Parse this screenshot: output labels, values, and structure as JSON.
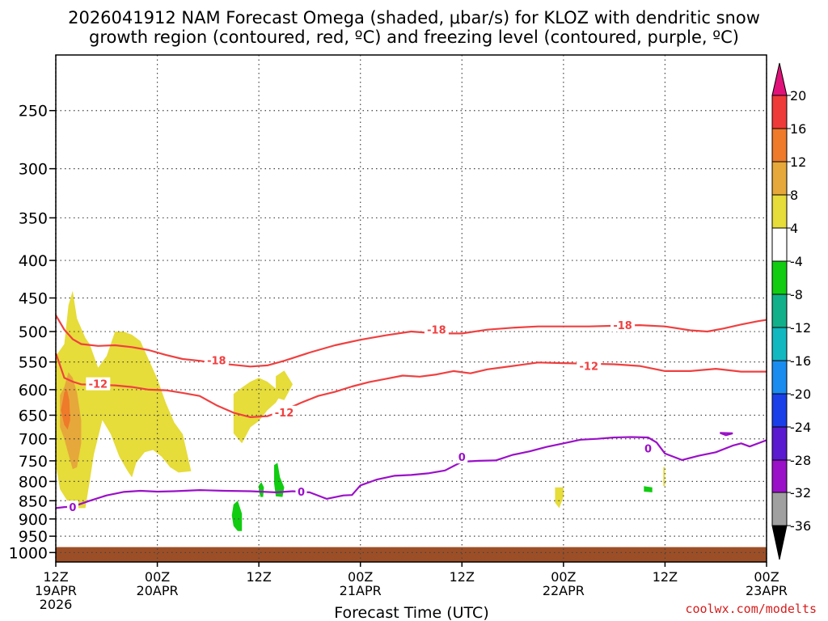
{
  "title_line1": "2026041912 NAM Forecast Omega (shaded, μbar/s) for KLOZ with dendritic snow",
  "title_line2": "growth region (contoured, red, ºC) and freezing level (contoured, purple, ºC)",
  "watermark": "coolwx.com/modelts",
  "chart_data": {
    "type": "contour",
    "title": "2026041912 NAM Forecast Omega (shaded, μbar/s) for KLOZ with dendritic snow growth region (contoured, red, ºC) and freezing level (contoured, purple, ºC)",
    "xlabel": "Forecast Time (UTC)",
    "ylabel": "",
    "xlim": [
      0,
      84
    ],
    "ylim": [
      1030,
      210
    ],
    "y_scale": "log-pressure (hPa)",
    "x_unit": "forecast hours from 2026-04-19 12Z",
    "grid": "dotted",
    "y_ticks": [
      250,
      300,
      350,
      400,
      450,
      500,
      550,
      600,
      650,
      700,
      750,
      800,
      850,
      900,
      950,
      1000
    ],
    "x_ticks": [
      {
        "hour": 0,
        "label": "12Z",
        "sub": "19APR",
        "sub2": "2026"
      },
      {
        "hour": 12,
        "label": "00Z",
        "sub": "20APR"
      },
      {
        "hour": 24,
        "label": "12Z",
        "sub": ""
      },
      {
        "hour": 36,
        "label": "00Z",
        "sub": "21APR"
      },
      {
        "hour": 48,
        "label": "12Z",
        "sub": ""
      },
      {
        "hour": 60,
        "label": "00Z",
        "sub": "22APR"
      },
      {
        "hour": 72,
        "label": "12Z",
        "sub": ""
      },
      {
        "hour": 84,
        "label": "00Z",
        "sub": "23APR"
      }
    ],
    "colorbar": {
      "labels": [
        "20",
        "16",
        "12",
        "8",
        "4",
        "-4",
        "-8",
        "-12",
        "-16",
        "-20",
        "-24",
        "-28",
        "-32",
        "-36"
      ],
      "colors": [
        "#ef3a3a",
        "#ee7a2a",
        "#e6a83a",
        "#e6dc3a",
        "#ffffff",
        "#11cc11",
        "#11b08a",
        "#12b8c0",
        "#1a8cf0",
        "#1a3ee8",
        "#5a1ad0",
        "#9a10c8",
        "#a0a0a0"
      ],
      "top_arrow_color": "#e0127a",
      "bottom_arrow_color": "#000000"
    },
    "series": [
      {
        "name": "-18",
        "color": "#f04040",
        "points": [
          [
            0,
            475
          ],
          [
            1,
            497
          ],
          [
            2,
            512
          ],
          [
            3,
            520
          ],
          [
            5,
            523
          ],
          [
            7,
            522
          ],
          [
            9,
            525
          ],
          [
            11,
            530
          ],
          [
            13,
            538
          ],
          [
            15,
            545
          ],
          [
            17,
            548
          ],
          [
            19,
            552
          ],
          [
            21,
            555
          ],
          [
            23,
            558
          ],
          [
            25,
            556
          ],
          [
            27,
            548
          ],
          [
            30,
            534
          ],
          [
            33,
            522
          ],
          [
            36,
            513
          ],
          [
            39,
            506
          ],
          [
            42,
            500
          ],
          [
            45,
            503
          ],
          [
            48,
            503
          ],
          [
            51,
            497
          ],
          [
            54,
            494
          ],
          [
            57,
            492
          ],
          [
            60,
            492
          ],
          [
            63,
            492
          ],
          [
            66,
            491
          ],
          [
            69,
            490
          ],
          [
            72,
            492
          ],
          [
            75,
            498
          ],
          [
            77,
            500
          ],
          [
            79,
            495
          ],
          [
            81,
            489
          ],
          [
            83,
            484
          ],
          [
            84,
            482
          ]
        ]
      },
      {
        "name": "-12",
        "color": "#f04040",
        "points": [
          [
            0,
            535
          ],
          [
            1,
            578
          ],
          [
            2,
            585
          ],
          [
            3,
            590
          ],
          [
            5,
            591
          ],
          [
            7,
            592
          ],
          [
            9,
            595
          ],
          [
            11,
            600
          ],
          [
            13,
            601
          ],
          [
            15,
            606
          ],
          [
            17,
            612
          ],
          [
            19,
            630
          ],
          [
            21,
            645
          ],
          [
            23,
            654
          ],
          [
            25,
            652
          ],
          [
            27,
            640
          ],
          [
            29,
            625
          ],
          [
            31,
            612
          ],
          [
            33,
            604
          ],
          [
            35,
            594
          ],
          [
            37,
            586
          ],
          [
            39,
            580
          ],
          [
            41,
            574
          ],
          [
            43,
            576
          ],
          [
            45,
            572
          ],
          [
            47,
            566
          ],
          [
            49,
            570
          ],
          [
            51,
            563
          ],
          [
            53,
            559
          ],
          [
            55,
            555
          ],
          [
            57,
            551
          ],
          [
            60,
            552
          ],
          [
            63,
            553
          ],
          [
            66,
            554
          ],
          [
            69,
            557
          ],
          [
            72,
            566
          ],
          [
            75,
            566
          ],
          [
            78,
            562
          ],
          [
            81,
            567
          ],
          [
            84,
            567
          ]
        ]
      },
      {
        "name": "0",
        "color": "#9a10c8",
        "points": [
          [
            0,
            870
          ],
          [
            1,
            867
          ],
          [
            2,
            866
          ],
          [
            4,
            850
          ],
          [
            6,
            836
          ],
          [
            8,
            827
          ],
          [
            10,
            824
          ],
          [
            12,
            826
          ],
          [
            14,
            825
          ],
          [
            17,
            822
          ],
          [
            20,
            824
          ],
          [
            23,
            825
          ],
          [
            26,
            828
          ],
          [
            28,
            825
          ],
          [
            30,
            828
          ],
          [
            32,
            845
          ],
          [
            34,
            836
          ],
          [
            35,
            835
          ],
          [
            36,
            810
          ],
          [
            38,
            795
          ],
          [
            40,
            786
          ],
          [
            42,
            784
          ],
          [
            44,
            780
          ],
          [
            46,
            773
          ],
          [
            48,
            752
          ],
          [
            50,
            750
          ],
          [
            52,
            749
          ],
          [
            54,
            736
          ],
          [
            56,
            728
          ],
          [
            58,
            718
          ],
          [
            60,
            710
          ],
          [
            62,
            702
          ],
          [
            64,
            700
          ],
          [
            66,
            697
          ],
          [
            68,
            696
          ],
          [
            70,
            697
          ],
          [
            71,
            708
          ],
          [
            72,
            733
          ],
          [
            74,
            748
          ],
          [
            76,
            738
          ],
          [
            78,
            730
          ],
          [
            80,
            715
          ],
          [
            81,
            710
          ],
          [
            82,
            717
          ],
          [
            84,
            703
          ]
        ]
      }
    ],
    "contour_labels": [
      {
        "text": "-18",
        "hour": 45,
        "hpa": 497
      },
      {
        "text": "-18",
        "hour": 19,
        "hpa": 547
      },
      {
        "text": "-18",
        "hour": 67,
        "hpa": 490
      },
      {
        "text": "-12",
        "hour": 5,
        "hpa": 589
      },
      {
        "text": "-12",
        "hour": 27,
        "hpa": 644
      },
      {
        "text": "-12",
        "hour": 63,
        "hpa": 557
      },
      {
        "text": "0",
        "hour": 2,
        "hpa": 867
      },
      {
        "text": "0",
        "hour": 29,
        "hpa": 826
      },
      {
        "text": "0",
        "hour": 48,
        "hpa": 741
      },
      {
        "text": "0",
        "hour": 70,
        "hpa": 721
      }
    ],
    "shaded_regions": [
      {
        "level": "4",
        "color": "#e6dc3a",
        "points": [
          [
            0,
            540
          ],
          [
            1,
            520
          ],
          [
            1.5,
            460
          ],
          [
            2,
            440
          ],
          [
            2.5,
            480
          ],
          [
            3.5,
            510
          ],
          [
            4,
            520
          ],
          [
            5,
            560
          ],
          [
            6,
            540
          ],
          [
            7,
            500
          ],
          [
            8,
            500
          ],
          [
            9,
            505
          ],
          [
            10,
            515
          ],
          [
            12,
            580
          ],
          [
            13,
            625
          ],
          [
            14,
            665
          ],
          [
            15,
            690
          ],
          [
            16,
            775
          ],
          [
            14.5,
            778
          ],
          [
            13.5,
            765
          ],
          [
            12.5,
            740
          ],
          [
            11.5,
            725
          ],
          [
            10.5,
            730
          ],
          [
            9.5,
            755
          ],
          [
            9,
            790
          ],
          [
            8.5,
            775
          ],
          [
            7.5,
            740
          ],
          [
            6.5,
            690
          ],
          [
            5.5,
            660
          ],
          [
            4.5,
            735
          ],
          [
            4,
            800
          ],
          [
            3.5,
            870
          ],
          [
            2.5,
            870
          ],
          [
            1.5,
            855
          ],
          [
            0.5,
            820
          ],
          [
            0,
            760
          ]
        ]
      },
      {
        "level": "4",
        "color": "#e6dc3a",
        "points": [
          [
            21,
            608
          ],
          [
            22,
            596
          ],
          [
            23,
            585
          ],
          [
            24,
            578
          ],
          [
            25,
            585
          ],
          [
            26,
            598
          ],
          [
            26.5,
            612
          ],
          [
            26,
            625
          ],
          [
            25,
            640
          ],
          [
            24,
            662
          ],
          [
            23,
            675
          ],
          [
            22,
            710
          ],
          [
            21,
            688
          ]
        ]
      },
      {
        "level": "4",
        "color": "#e6dc3a",
        "points": [
          [
            26,
            575
          ],
          [
            27,
            565
          ],
          [
            28,
            590
          ],
          [
            27,
            620
          ],
          [
            26,
            615
          ]
        ]
      },
      {
        "level": "4",
        "color": "#e6dc3a",
        "points": [
          [
            59,
            815
          ],
          [
            60,
            815
          ],
          [
            60,
            840
          ],
          [
            59.5,
            870
          ],
          [
            59,
            855
          ],
          [
            59,
            835
          ]
        ]
      },
      {
        "level": "4",
        "color": "#e6dc3a",
        "points": [
          [
            71.8,
            765
          ],
          [
            72,
            765
          ],
          [
            72,
            812
          ],
          [
            71.8,
            812
          ]
        ]
      },
      {
        "level": "8",
        "color": "#e6a83a",
        "points": [
          [
            0.5,
            610
          ],
          [
            1,
            595
          ],
          [
            1.5,
            568
          ],
          [
            2,
            578
          ],
          [
            2.5,
            605
          ],
          [
            3,
            660
          ],
          [
            3,
            710
          ],
          [
            2.5,
            765
          ],
          [
            2,
            770
          ],
          [
            1.5,
            735
          ],
          [
            1,
            700
          ],
          [
            0.5,
            675
          ]
        ]
      },
      {
        "level": "12",
        "color": "#ee7a2a",
        "points": [
          [
            0.6,
            640
          ],
          [
            1,
            605
          ],
          [
            1.3,
            598
          ],
          [
            1.6,
            620
          ],
          [
            1.7,
            660
          ],
          [
            1.4,
            680
          ],
          [
            1,
            670
          ]
        ]
      },
      {
        "level": "-4",
        "color": "#11cc11",
        "points": [
          [
            21,
            860
          ],
          [
            21.5,
            850
          ],
          [
            22,
            885
          ],
          [
            22,
            935
          ],
          [
            21.5,
            935
          ],
          [
            21,
            920
          ],
          [
            20.8,
            890
          ]
        ]
      },
      {
        "level": "-4",
        "color": "#11cc11",
        "points": [
          [
            24,
            810
          ],
          [
            24.3,
            802
          ],
          [
            24.6,
            815
          ],
          [
            24.5,
            840
          ],
          [
            24.2,
            840
          ],
          [
            24,
            825
          ]
        ]
      },
      {
        "level": "-4",
        "color": "#11cc11",
        "points": [
          [
            25.8,
            760
          ],
          [
            26.2,
            755
          ],
          [
            26.5,
            790
          ],
          [
            27,
            815
          ],
          [
            26.8,
            840
          ],
          [
            26,
            838
          ],
          [
            25.8,
            805
          ]
        ]
      },
      {
        "level": "-4",
        "color": "#11cc11",
        "points": [
          [
            69.5,
            812
          ],
          [
            70.5,
            815
          ],
          [
            70.5,
            828
          ],
          [
            69.5,
            826
          ]
        ]
      }
    ],
    "ground": {
      "top_hpa": 983,
      "color": "#9c4f27"
    }
  }
}
